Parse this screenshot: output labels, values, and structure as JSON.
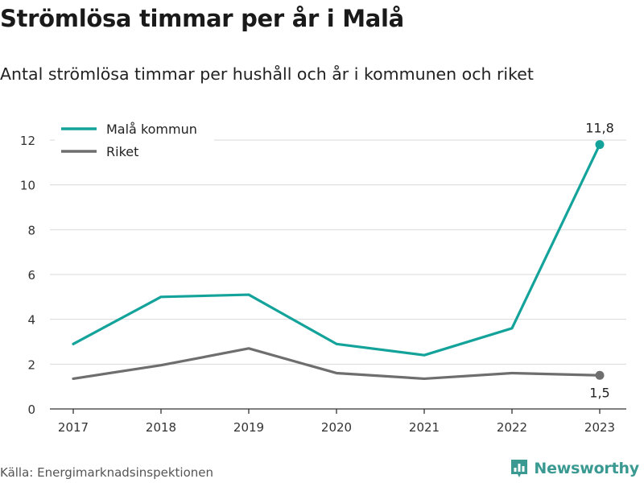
{
  "title": "Strömlösa timmar per år i Malå",
  "subtitle": "Antal strömlösa timmar per hushåll och år i kommunen och riket",
  "source": "Källa: Energimarknadsinspektionen",
  "brand": {
    "name": "Newsworthy",
    "icon": "bar-chart-pin-icon",
    "color": "#3a9a92"
  },
  "chart_data": {
    "type": "line",
    "x": [
      "2017",
      "2018",
      "2019",
      "2020",
      "2021",
      "2022",
      "2023"
    ],
    "series": [
      {
        "name": "Malå kommun",
        "color": "#14a39a",
        "values": [
          2.9,
          5.0,
          5.1,
          2.9,
          2.4,
          3.6,
          11.8
        ]
      },
      {
        "name": "Riket",
        "color": "#6e6e6e",
        "values": [
          1.35,
          1.95,
          2.7,
          1.6,
          1.35,
          1.6,
          1.5
        ]
      }
    ],
    "ylim": [
      0,
      12
    ],
    "yticks": [
      "0",
      "2",
      "4",
      "6",
      "8",
      "10",
      "12"
    ],
    "grid": true,
    "legend": "top-left",
    "annotations": [
      {
        "series": 0,
        "index": 6,
        "label": "11,8",
        "placement": "above"
      },
      {
        "series": 1,
        "index": 6,
        "label": "1,5",
        "placement": "below"
      }
    ]
  }
}
